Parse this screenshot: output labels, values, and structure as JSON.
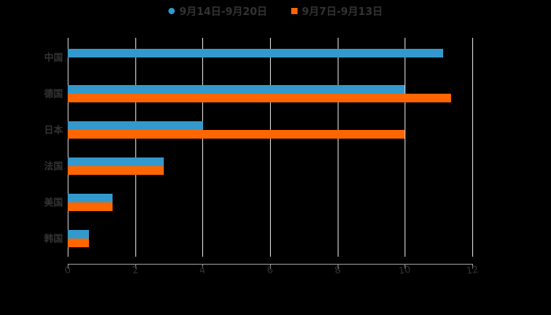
{
  "legend": [
    {
      "label": "9月14日-9月20日",
      "color": "#3399cc"
    },
    {
      "label": "9月7日-9月13日",
      "color": "#ff6600"
    }
  ],
  "chart_data": {
    "type": "bar",
    "orientation": "horizontal",
    "title": "",
    "xlabel": "",
    "ylabel": "",
    "categories": [
      "中国",
      "德国",
      "日本",
      "法国",
      "美国",
      "韩国"
    ],
    "series": [
      {
        "name": "9月14日-9月20日",
        "color": "#3399cc",
        "values": [
          11.14,
          10.0,
          4.02,
          2.85,
          1.33,
          0.63
        ]
      },
      {
        "name": "9月7日-9月13日",
        "color": "#ff6600",
        "values": [
          null,
          11.37,
          10.0,
          2.85,
          1.33,
          0.63
        ]
      }
    ],
    "xlim": [
      0,
      12
    ],
    "xticks": [
      "0",
      "2",
      "4",
      "6",
      "8",
      "10",
      "12"
    ],
    "grid": "vertical",
    "legend_position": "top"
  }
}
